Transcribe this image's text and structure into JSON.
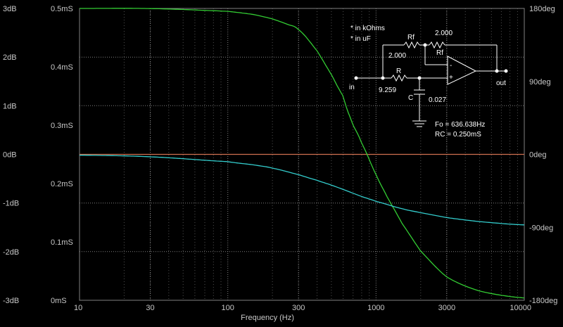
{
  "chart_data": {
    "type": "line",
    "xlabel": "Frequency (Hz)",
    "x_scale": "log",
    "xlim": [
      10,
      10000
    ],
    "x_ticks": [
      10,
      30,
      100,
      300,
      1000,
      3000,
      10000
    ],
    "x_tick_labels": [
      "10",
      "30",
      "100",
      "300",
      "1000",
      "3000",
      "10000"
    ],
    "axes": {
      "db": {
        "lim": [
          -3,
          3
        ],
        "ticks": [
          3,
          2,
          1,
          0,
          -1,
          -2,
          -3
        ],
        "tick_labels": [
          "3dB",
          "2dB",
          "1dB",
          "0dB",
          "-1dB",
          "-2dB",
          "-3dB"
        ]
      },
      "conductance": {
        "lim": [
          0,
          0.5
        ],
        "ticks": [
          0.5,
          0.4,
          0.3,
          0.2,
          0.1,
          0
        ],
        "tick_labels": [
          "0.5mS",
          "0.4mS",
          "0.3mS",
          "0.2mS",
          "0.1mS",
          "0mS"
        ]
      },
      "phase": {
        "lim": [
          -180,
          180
        ],
        "ticks": [
          180,
          90,
          0,
          -90,
          -180
        ],
        "tick_labels": [
          "180deg",
          "90deg",
          "0deg",
          "-90deg",
          "-180deg"
        ]
      }
    },
    "grid": true,
    "series": [
      {
        "axis": "db",
        "color": "#d07050",
        "x": [
          10,
          10000
        ],
        "y": [
          0,
          0
        ]
      },
      {
        "axis": "conductance",
        "color": "#33cc33",
        "x": [
          10,
          30,
          100,
          150,
          200,
          250,
          300,
          400,
          500,
          600,
          636.638,
          700,
          800,
          1000,
          1200,
          1500,
          2000,
          3000,
          5000,
          10000
        ],
        "y": [
          0.5,
          0.4998,
          0.4951,
          0.4895,
          0.4821,
          0.4732,
          0.4636,
          0.4274,
          0.3867,
          0.35,
          0.327,
          0.3,
          0.2689,
          0.2153,
          0.175,
          0.1314,
          0.0843,
          0.04,
          0.0158,
          0.004
        ]
      },
      {
        "axis": "phase",
        "color": "#33cccc",
        "x": [
          10,
          30,
          100,
          150,
          200,
          300,
          400,
          500,
          636.638,
          800,
          1000,
          1500,
          2000,
          3000,
          5000,
          10000
        ],
        "y": [
          -1,
          -3,
          -9,
          -13,
          -17,
          -25,
          -32,
          -38,
          -45,
          -52,
          -58,
          -67,
          -72,
          -78,
          -83,
          -87
        ]
      }
    ]
  },
  "circuit": {
    "note_units_r": "* in kOhms",
    "note_units_c": "* in uF",
    "rf_top_label": "Rf",
    "rf_top_value": "2.000",
    "rf_right_value": "2.000",
    "rf_right_label": "Rf",
    "r_label": "R",
    "r_value": "9.259",
    "c_label": "C",
    "c_value": "0.027",
    "in_label": "in",
    "out_label": "out",
    "opamp_minus": "-",
    "opamp_plus": "+",
    "fo_text": "Fo = 636.638Hz",
    "rc_text": "RC = 0.250mS"
  },
  "colors": {
    "background": "#000000",
    "grid_major": "#808080",
    "grid_minor": "#505050",
    "text": "#c8c8c8",
    "circuit": "#ffffff"
  }
}
